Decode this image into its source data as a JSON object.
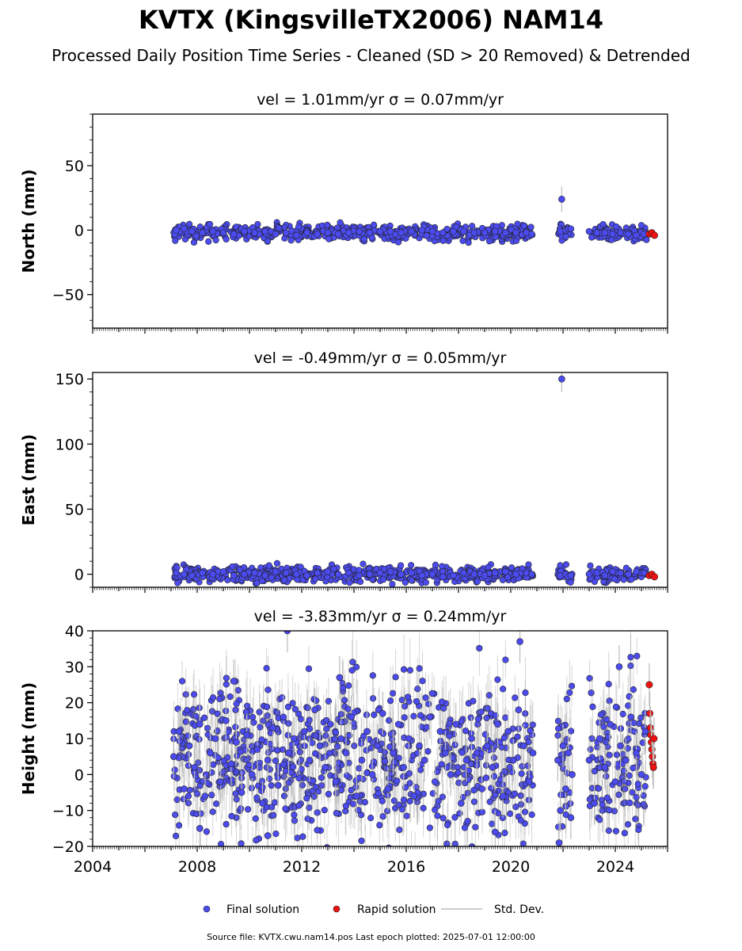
{
  "figure": {
    "title": "KVTX (KingsvilleTX2006) NAM14",
    "subtitle": "Processed Daily Position Time Series - Cleaned (SD > 20 Removed) & Detrended",
    "footer": "Source file: KVTX.cwu.nam14.pos  Last epoch plotted: 2025-07-01 12:00:00"
  },
  "legend": {
    "placement": "bottom-center",
    "items": [
      {
        "label": "Final solution",
        "color": "#4b4bf0"
      },
      {
        "label": "Rapid solution",
        "color": "#ee1111"
      },
      {
        "label": "Std. Dev.",
        "color": "#cccccc"
      }
    ]
  },
  "chart_data": [
    {
      "type": "scatter",
      "title": "vel = 1.01mm/yr   σ = 0.07mm/yr",
      "ylabel": "North (mm)",
      "xlim": [
        2004,
        2026
      ],
      "ylim": [
        -76,
        90
      ],
      "yticks": [
        -50,
        0,
        50
      ],
      "ytick_labels": [
        "−50",
        "0",
        "50"
      ],
      "show_xticklabels": false,
      "series": [
        {
          "name": "Final solution",
          "color": "#4b4bf0",
          "x": [
            2007.2,
            2007.5,
            2007.8,
            2008.2,
            2008.6,
            2009.0,
            2009.4,
            2009.8,
            2010.2,
            2010.6,
            2011.0,
            2011.4,
            2011.8,
            2012.2,
            2012.6,
            2013.0,
            2013.4,
            2013.8,
            2014.2,
            2014.6,
            2015.0,
            2015.4,
            2015.8,
            2016.2,
            2016.6,
            2017.0,
            2017.4,
            2017.8,
            2018.2,
            2018.6,
            2019.0,
            2019.4,
            2019.8,
            2020.2,
            2020.6,
            2020.8,
            2021.9,
            2022.1,
            2022.2,
            2022.3,
            2021.95,
            2023.0,
            2023.3,
            2023.6,
            2023.9,
            2024.2,
            2024.5,
            2024.8,
            2025.1
          ],
          "y": [
            0,
            1,
            -1,
            -2,
            -1,
            -2,
            -3,
            -1,
            -2,
            -1,
            -3,
            -2,
            -4,
            -2,
            -3,
            -2,
            -3,
            -2,
            -1,
            -2,
            -1,
            -1,
            -2,
            -1,
            0,
            -1,
            -2,
            -1,
            -1,
            -2,
            -2,
            -1,
            -2,
            -2,
            -2,
            -3,
            -1,
            0,
            1,
            1,
            24,
            -1,
            -2,
            -2,
            -3,
            -2,
            -3,
            -4,
            -3
          ]
        },
        {
          "name": "Rapid solution",
          "color": "#ee1111",
          "x": [
            2025.3,
            2025.4,
            2025.5
          ],
          "y": [
            -3,
            -2,
            -4
          ]
        }
      ]
    },
    {
      "type": "scatter",
      "title": "vel = -0.49mm/yr   σ = 0.05mm/yr",
      "ylabel": "East (mm)",
      "xlim": [
        2004,
        2026
      ],
      "ylim": [
        -10,
        155
      ],
      "yticks": [
        0,
        50,
        100,
        150
      ],
      "ytick_labels": [
        "0",
        "50",
        "100",
        "150"
      ],
      "show_xticklabels": false,
      "series": [
        {
          "name": "Final solution",
          "color": "#4b4bf0",
          "x": [
            2007.2,
            2007.5,
            2007.8,
            2008.2,
            2008.6,
            2009.0,
            2009.4,
            2009.8,
            2010.2,
            2010.6,
            2011.0,
            2011.4,
            2011.8,
            2012.2,
            2012.6,
            2013.0,
            2013.4,
            2013.8,
            2014.2,
            2014.6,
            2015.0,
            2015.4,
            2015.8,
            2016.2,
            2016.6,
            2017.0,
            2017.4,
            2017.8,
            2018.2,
            2018.6,
            2019.0,
            2019.4,
            2019.8,
            2020.2,
            2020.6,
            2020.8,
            2021.9,
            2022.1,
            2022.2,
            2022.3,
            2021.95,
            2023.0,
            2023.3,
            2023.6,
            2023.9,
            2024.2,
            2024.5,
            2024.8,
            2025.1
          ],
          "y": [
            1,
            0,
            -1,
            1,
            0,
            2,
            -1,
            0,
            1,
            -1,
            2,
            1,
            0,
            -1,
            1,
            2,
            0,
            1,
            -1,
            0,
            1,
            2,
            0,
            1,
            -1,
            0,
            -2,
            -1,
            1,
            0,
            -1,
            1,
            2,
            0,
            1,
            0,
            -1,
            0,
            -2,
            -1,
            150,
            0,
            1,
            -1,
            2,
            1,
            0,
            2,
            1
          ]
        },
        {
          "name": "Rapid solution",
          "color": "#ee1111",
          "x": [
            2025.3,
            2025.4,
            2025.5
          ],
          "y": [
            -1,
            0,
            -2
          ]
        }
      ]
    },
    {
      "type": "scatter",
      "title": "vel = -3.83mm/yr   σ = 0.24mm/yr",
      "ylabel": "Height (mm)",
      "xlim": [
        2004,
        2026
      ],
      "ylim": [
        -20,
        40
      ],
      "yticks": [
        -20,
        -10,
        0,
        10,
        20,
        30,
        40
      ],
      "ytick_labels": [
        "−20",
        "−10",
        "0",
        "10",
        "20",
        "30",
        "40"
      ],
      "xticks": [
        2004,
        2008,
        2012,
        2016,
        2020,
        2024
      ],
      "show_xticklabels": true,
      "series": [
        {
          "name": "Final solution",
          "color": "#4b4bf0",
          "x": [
            2007.1,
            2007.3,
            2007.5,
            2007.7,
            2007.9,
            2008.1,
            2008.3,
            2008.5,
            2008.7,
            2008.9,
            2009.1,
            2009.3,
            2009.5,
            2009.7,
            2009.9,
            2010.1,
            2010.3,
            2010.5,
            2010.7,
            2010.9,
            2011.1,
            2011.3,
            2011.5,
            2011.7,
            2011.9,
            2012.1,
            2012.3,
            2012.5,
            2012.7,
            2012.9,
            2013.1,
            2013.3,
            2013.5,
            2013.7,
            2013.9,
            2014.1,
            2014.3,
            2014.5,
            2014.7,
            2014.9,
            2015.1,
            2015.3,
            2015.5,
            2015.7,
            2015.9,
            2016.1,
            2016.3,
            2016.5,
            2016.7,
            2016.9,
            2017.1,
            2017.3,
            2017.5,
            2017.7,
            2017.9,
            2018.1,
            2018.3,
            2018.5,
            2018.7,
            2018.9,
            2019.1,
            2019.3,
            2019.5,
            2019.7,
            2019.9,
            2020.1,
            2020.3,
            2020.5,
            2020.7,
            2020.85,
            2021.8,
            2021.9,
            2022.0,
            2022.1,
            2022.2,
            2022.3,
            2022.35,
            2023.0,
            2023.2,
            2023.4,
            2023.6,
            2023.8,
            2024.0,
            2024.2,
            2024.4,
            2024.6,
            2024.8,
            2025.0,
            2025.15,
            2009.4,
            2011.45,
            2013.45,
            2020.35,
            2021.85,
            2024.15,
            2008.1,
            2010.7,
            2019.4
          ],
          "y": [
            5,
            12,
            -4,
            8,
            2,
            14,
            -6,
            6,
            10,
            -2,
            15,
            3,
            9,
            -5,
            11,
            0,
            7,
            -8,
            4,
            13,
            -3,
            16,
            6,
            10,
            -1,
            12,
            4,
            18,
            8,
            2,
            14,
            -2,
            10,
            6,
            16,
            -6,
            4,
            12,
            0,
            8,
            17,
            -4,
            6,
            14,
            2,
            10,
            -6,
            8,
            4,
            16,
            -2,
            12,
            6,
            0,
            14,
            -8,
            4,
            10,
            6,
            -4,
            8,
            2,
            14,
            -6,
            12,
            4,
            18,
            8,
            -2,
            6,
            4,
            -10,
            8,
            -4,
            6,
            -12,
            0,
            4,
            -8,
            10,
            2,
            14,
            -2,
            8,
            4,
            16,
            6,
            0,
            12,
            26,
            40,
            27,
            37,
            -19,
            30,
            -15,
            -17,
            -16
          ]
        },
        {
          "name": "Rapid solution",
          "color": "#ee1111",
          "x": [
            2025.3,
            2025.32,
            2025.34,
            2025.36,
            2025.38,
            2025.4,
            2025.42,
            2025.44,
            2025.46,
            2025.48
          ],
          "y": [
            25,
            17,
            13,
            11,
            9,
            7,
            5,
            3,
            2,
            10
          ]
        }
      ]
    }
  ]
}
